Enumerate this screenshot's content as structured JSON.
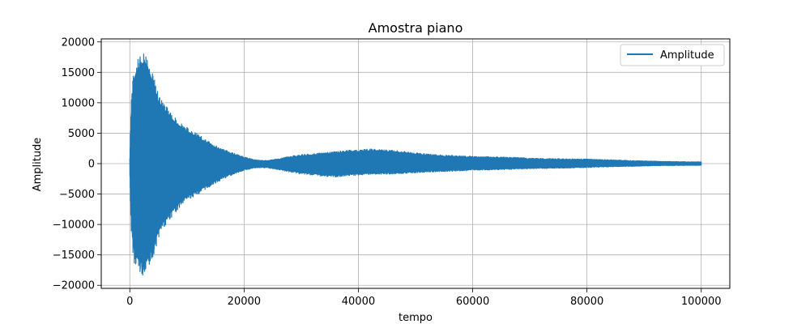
{
  "chart_data": {
    "type": "line",
    "title": "Amostra piano",
    "xlabel": "tempo",
    "ylabel": "Amplitude",
    "xlim": [
      -5000,
      105000
    ],
    "ylim": [
      -20500,
      20500
    ],
    "x_ticks": [
      0,
      20000,
      40000,
      60000,
      80000,
      100000
    ],
    "y_ticks": [
      -20000,
      -15000,
      -10000,
      -5000,
      0,
      5000,
      10000,
      15000,
      20000
    ],
    "grid": true,
    "legend": "top-right",
    "series": [
      {
        "name": "Amplitude",
        "color": "#1f77b4",
        "envelope": {
          "x": [
            0,
            100,
            300,
            800,
            1500,
            2000,
            2500,
            3000,
            4000,
            5000,
            6000,
            8000,
            10000,
            12000,
            14000,
            16000,
            18000,
            20000,
            22000,
            24000,
            26000,
            28000,
            30000,
            32000,
            34000,
            36000,
            38000,
            40000,
            42000,
            44000,
            46000,
            48000,
            50000,
            52000,
            55000,
            58000,
            60000,
            62000,
            65000,
            68000,
            70000,
            72000,
            75000,
            78000,
            80000,
            82000,
            85000,
            88000,
            90000,
            92000,
            95000,
            98000,
            100000
          ],
          "upper": [
            1000,
            6000,
            12000,
            16000,
            17500,
            18200,
            18600,
            18200,
            15000,
            11500,
            10000,
            7500,
            6000,
            4800,
            3500,
            2500,
            1800,
            1100,
            600,
            500,
            800,
            1200,
            1500,
            1600,
            1800,
            2000,
            2200,
            2300,
            2400,
            2300,
            2200,
            2000,
            1800,
            1600,
            1400,
            1300,
            1200,
            1150,
            1100,
            1000,
            900,
            850,
            800,
            780,
            750,
            680,
            600,
            520,
            450,
            400,
            350,
            300,
            300
          ],
          "lower": [
            -1000,
            -6500,
            -13000,
            -16500,
            -17500,
            -18200,
            -18500,
            -17800,
            -15500,
            -12500,
            -10500,
            -8000,
            -6000,
            -5000,
            -3800,
            -2700,
            -1800,
            -1100,
            -700,
            -700,
            -1000,
            -1400,
            -1700,
            -1900,
            -2100,
            -2200,
            -2000,
            -1900,
            -1800,
            -1750,
            -1700,
            -1600,
            -1500,
            -1400,
            -1300,
            -1200,
            -1100,
            -1050,
            -1000,
            -900,
            -850,
            -800,
            -750,
            -700,
            -650,
            -580,
            -500,
            -450,
            -400,
            -350,
            -320,
            -300,
            -300
          ]
        }
      }
    ]
  }
}
